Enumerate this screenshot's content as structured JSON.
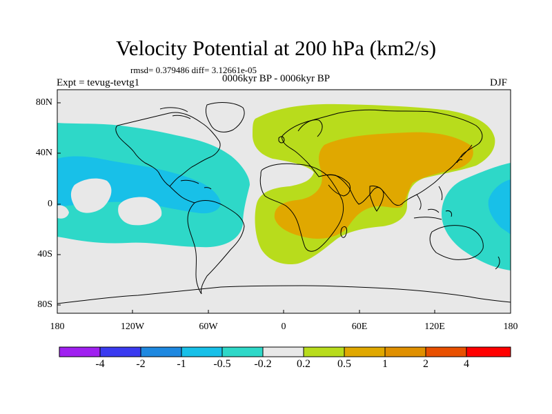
{
  "title": "Velocity Potential at 200 hPa (km2/s)",
  "stats": "rmsd= 0.379486 diff= 3.12661e-05",
  "period": "0006kyr BP - 0006kyr BP",
  "experiment": "Expt = tevug-tevtg1",
  "season": "DJF",
  "y_axis_labels": [
    "80N",
    "40N",
    "0",
    "40S",
    "80S"
  ],
  "x_axis_labels": [
    "180",
    "120W",
    "60W",
    "0",
    "60E",
    "120E",
    "180"
  ],
  "colorbar": {
    "colors": [
      "#a020f0",
      "#3a3af0",
      "#1e88e0",
      "#18c0e8",
      "#2ed8c8",
      "#e8e8e8",
      "#b8dc1c",
      "#e0a800",
      "#e09000",
      "#e85000",
      "#ff0000"
    ],
    "labels": [
      "-4",
      "-2",
      "-1",
      "-0.5",
      "-0.2",
      "0.2",
      "0.5",
      "1",
      "2",
      "4"
    ]
  },
  "palette": {
    "neutral": "#e8e8e8",
    "teal": "#2ed8c8",
    "cyan": "#18c0e8",
    "green": "#b8dc1c",
    "orange": "#e0a800"
  }
}
